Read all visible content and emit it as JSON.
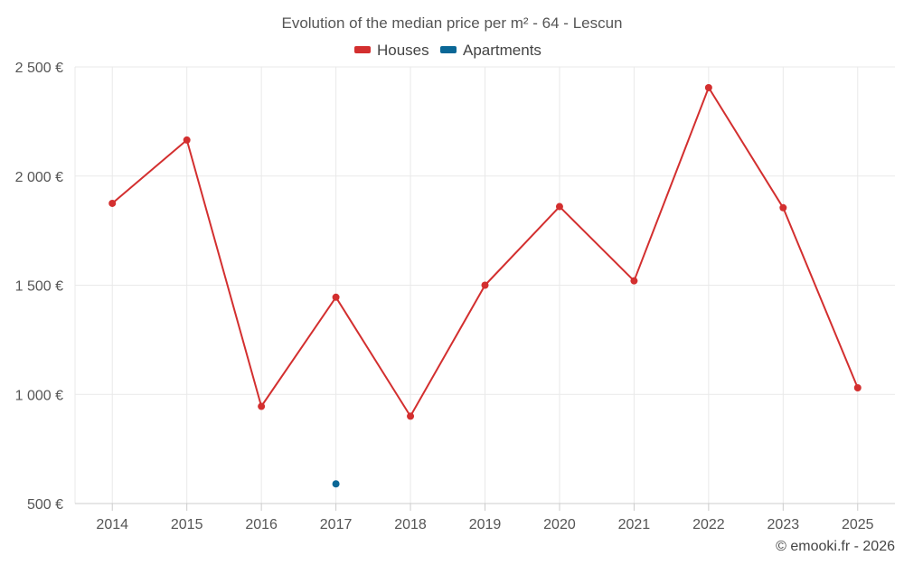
{
  "chart_data": {
    "type": "line",
    "title": "Evolution of the median price per m² - 64 - Lescun",
    "xlabel": "",
    "ylabel": "",
    "categories": [
      "2014",
      "2015",
      "2016",
      "2017",
      "2018",
      "2019",
      "2020",
      "2021",
      "2022",
      "2023",
      "2025"
    ],
    "ylim": [
      500,
      2500
    ],
    "yticks": [
      500,
      1000,
      1500,
      2000,
      2500
    ],
    "ytick_labels": [
      "500 €",
      "1 000 €",
      "1 500 €",
      "2 000 €",
      "2 500 €"
    ],
    "grid": true,
    "legend_position": "top-center",
    "series": [
      {
        "name": "Houses",
        "color": "#d32f2f",
        "values": [
          1875,
          2165,
          945,
          1445,
          900,
          1500,
          1860,
          1520,
          2405,
          1855,
          1030
        ]
      },
      {
        "name": "Apartments",
        "color": "#0a6796",
        "values": [
          null,
          null,
          null,
          590,
          null,
          null,
          null,
          null,
          null,
          null,
          null
        ]
      }
    ]
  },
  "credit": "© emooki.fr - 2026"
}
